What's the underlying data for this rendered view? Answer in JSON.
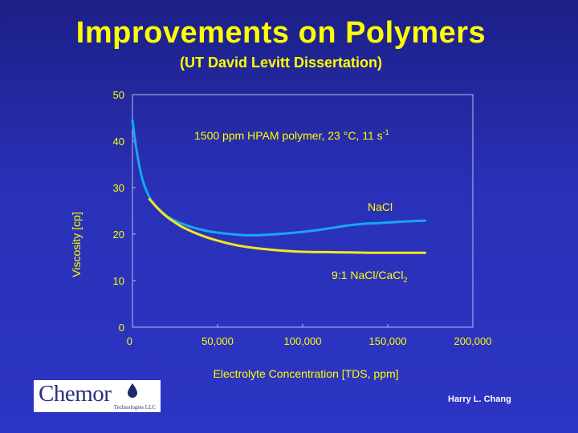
{
  "slide": {
    "title": "Improvements on Polymers",
    "subtitle": "(UT David Levitt Dissertation)",
    "author": "Harry L. Chang"
  },
  "logo": {
    "word": "Chemor",
    "sub": "Technologies LLC",
    "icon": "oil-drop-icon"
  },
  "chart_data": {
    "type": "line",
    "xlabel": "Electrolyte Concentration [TDS, ppm]",
    "ylabel": "Viscosity [cp]",
    "xlim": [
      0,
      200000
    ],
    "ylim": [
      0,
      50
    ],
    "xticks": [
      0,
      50000,
      100000,
      150000,
      200000
    ],
    "xtick_labels": [
      "0",
      "50,000",
      "100,000",
      "150,000",
      "200,000"
    ],
    "yticks": [
      0,
      10,
      20,
      30,
      40,
      50
    ],
    "ytick_labels": [
      "0",
      "10",
      "20",
      "30",
      "40",
      "50"
    ],
    "grid": false,
    "annotation": {
      "text": "1500 ppm HPAM polymer, 23 °C, 11 s",
      "superscript": "-1"
    },
    "series": [
      {
        "name": "NaCl",
        "color": "#19a6f0",
        "label_text": "NaCl",
        "x": [
          0,
          2000,
          5000,
          8000,
          12000,
          18000,
          25000,
          35000,
          45000,
          55000,
          65000,
          75000,
          85000,
          95000,
          105000,
          115000,
          125000,
          135000,
          145000,
          155000,
          165000,
          172000
        ],
        "y": [
          44.5,
          39,
          33,
          29.5,
          26.8,
          24.5,
          22.9,
          21.5,
          20.6,
          20.1,
          19.8,
          19.8,
          20.0,
          20.3,
          20.7,
          21.2,
          21.8,
          22.2,
          22.4,
          22.6,
          22.8,
          22.9
        ]
      },
      {
        "name": "9:1 NaCl/CaCl2",
        "color": "#f5e61e",
        "label_text": "9:1 NaCl/CaCl",
        "label_subscript": "2",
        "x": [
          10000,
          15000,
          20000,
          25000,
          30000,
          40000,
          50000,
          60000,
          70000,
          80000,
          90000,
          100000,
          120000,
          140000,
          160000,
          172000
        ],
        "y": [
          27.5,
          25.5,
          23.8,
          22.5,
          21.4,
          19.8,
          18.6,
          17.7,
          17.1,
          16.7,
          16.4,
          16.2,
          16.1,
          16.0,
          16.0,
          16.0
        ]
      }
    ]
  }
}
